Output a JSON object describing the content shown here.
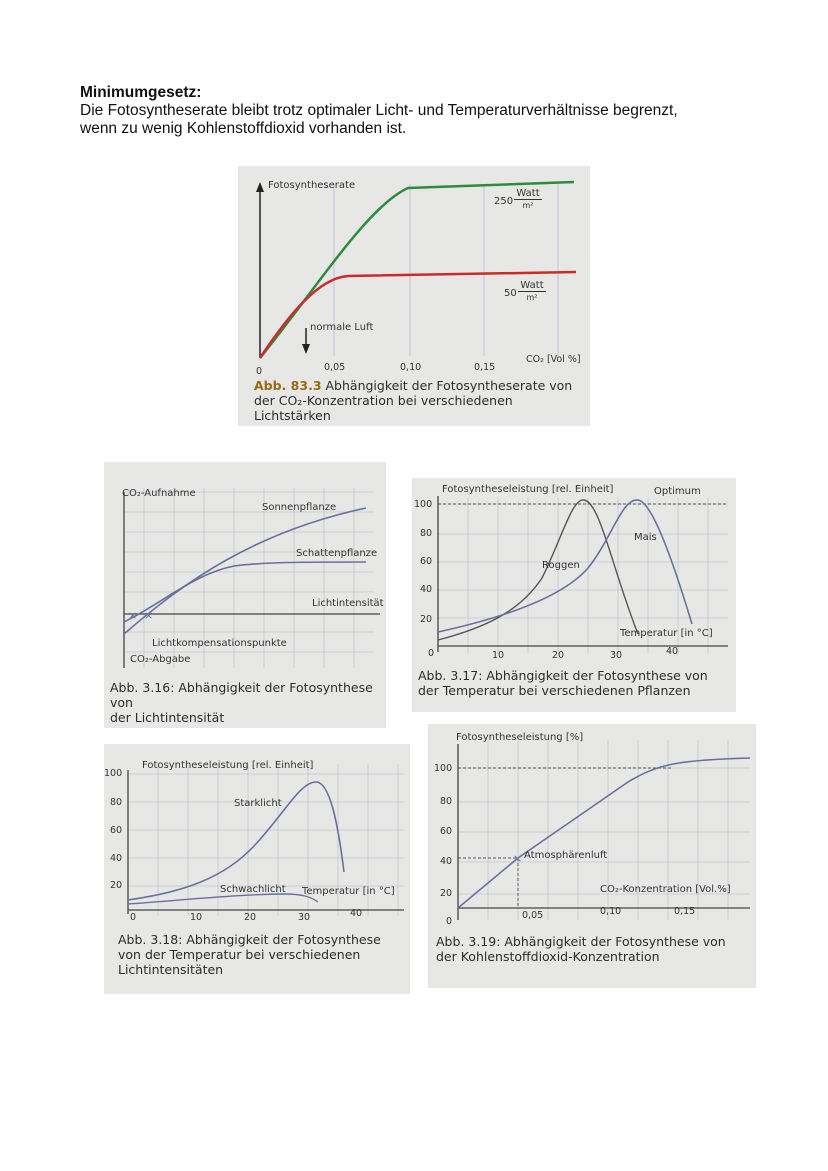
{
  "heading": {
    "title": "Minimumgesetz:",
    "line1": "Die Fotosyntheserate bleibt trotz optimaler Licht- und Temperaturverhältnisse begrenzt,",
    "line2": "wenn zu wenig Kohlenstoffdioxid vorhanden ist."
  },
  "figures": {
    "fig833": {
      "ylabel": "Fotosyntheserate",
      "origin": "0",
      "x_ticks": [
        "0,05",
        "0,10",
        "0,15"
      ],
      "xlabel": "CO₂ [Vol %]",
      "series_high_value": "250",
      "series_low_value": "50",
      "unit_num": "Watt",
      "unit_den": "m²",
      "marker": "normale Luft",
      "caption_num": "Abb. 83.3",
      "caption_line1": "Abhängigkeit der Fotosyntheserate von",
      "caption_line2": "der CO₂-Konzentration bei verschiedenen Lichtstärken",
      "colors": {
        "high": "#2e8b3e",
        "low": "#cc2b2b"
      }
    },
    "fig316": {
      "ylabel": "CO₂-Aufnahme",
      "ylabel_neg": "CO₂-Abgabe",
      "series1": "Sonnenpflanze",
      "series2": "Schattenpflanze",
      "xlabel": "Lichtintensität",
      "annotation": "Lichtkompensationspunkte",
      "caption_line1": "Abb. 3.16: Abhängigkeit der Fotosynthese von",
      "caption_line2": "der Lichtintensität"
    },
    "fig317": {
      "ylabel": "Fotosyntheseleistung [rel. Einheit]",
      "optimum": "Optimum",
      "y_ticks": [
        "100",
        "80",
        "60",
        "40",
        "20",
        "0"
      ],
      "x_ticks": [
        "10",
        "20",
        "30",
        "40"
      ],
      "series1": "Roggen",
      "series2": "Mais",
      "xlabel": "Temperatur [in °C]",
      "caption_line1": "Abb. 3.17: Abhängigkeit der Fotosynthese von",
      "caption_line2": "der Temperatur bei verschiedenen Pflanzen"
    },
    "fig318": {
      "ylabel": "Fotosyntheseleistung [rel. Einheit]",
      "y_ticks": [
        "100",
        "80",
        "60",
        "40",
        "20",
        "0"
      ],
      "x_ticks": [
        "10",
        "20",
        "30",
        "40"
      ],
      "series1": "Starklicht",
      "series2": "Schwachlicht",
      "xlabel": "Temperatur [in °C]",
      "caption_line1": "Abb. 3.18: Abhängigkeit der Fotosynthese",
      "caption_line2": "von der Temperatur bei verschiedenen",
      "caption_line3": "Lichtintensitäten"
    },
    "fig319": {
      "ylabel": "Fotosyntheseleistung [%]",
      "y_ticks": [
        "100",
        "80",
        "60",
        "40",
        "20",
        "0"
      ],
      "x_ticks": [
        "0,05",
        "0,10",
        "0,15"
      ],
      "marker": "Atmosphärenluft",
      "xlabel": "CO₂-Konzentration [Vol.%]",
      "caption_line1": "Abb. 3.19: Abhängigkeit der Fotosynthese von",
      "caption_line2": "der Kohlenstoffdioxid-Konzentration"
    }
  },
  "colors": {
    "curve": "#6a6f9c",
    "grid": "#c4c6cc",
    "axis": "#444444",
    "photo_bg": "#e7e8e6"
  }
}
